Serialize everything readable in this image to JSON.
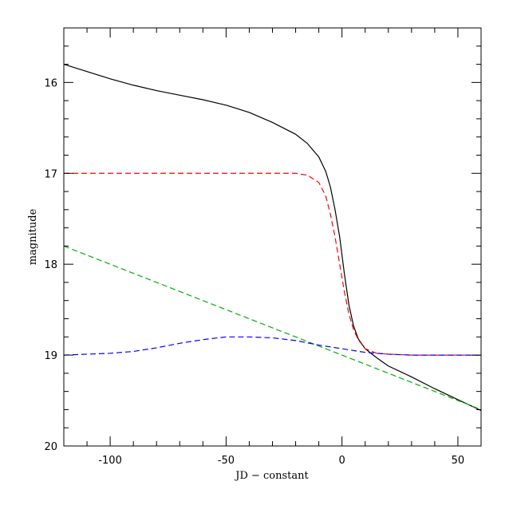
{
  "chart_data": {
    "type": "line",
    "title": "",
    "xlabel": "JD − constant",
    "ylabel": "magnitude",
    "xlim": [
      -120,
      60
    ],
    "ylim": [
      20,
      15.4
    ],
    "y_inverted": true,
    "grid": false,
    "x_ticks": [
      -100,
      -50,
      0,
      50
    ],
    "x_tick_labels": [
      "-100",
      "-50",
      "0",
      "50"
    ],
    "y_ticks": [
      16,
      17,
      18,
      19,
      20
    ],
    "y_tick_labels": [
      "16",
      "17",
      "18",
      "19",
      "20"
    ],
    "series": [
      {
        "color": "#000000",
        "dash": "solid",
        "x": [
          -120,
          -110,
          -100,
          -90,
          -80,
          -70,
          -60,
          -50,
          -40,
          -30,
          -20,
          -15,
          -10,
          -7,
          -5,
          -3,
          -1,
          0,
          1,
          3,
          5,
          7,
          10,
          15,
          20,
          30,
          40,
          50,
          60
        ],
        "y": [
          15.8,
          15.88,
          15.96,
          16.03,
          16.09,
          16.14,
          16.19,
          16.25,
          16.33,
          16.44,
          16.57,
          16.67,
          16.82,
          16.98,
          17.15,
          17.4,
          17.7,
          17.9,
          18.1,
          18.45,
          18.68,
          18.82,
          18.93,
          19.03,
          19.12,
          19.24,
          19.37,
          19.49,
          19.61
        ]
      },
      {
        "color": "#ff0000",
        "dash": "dashed",
        "x": [
          -120,
          -100,
          -80,
          -60,
          -40,
          -20,
          -15,
          -10,
          -7,
          -5,
          -3,
          -1,
          0,
          1,
          3,
          5,
          7,
          10,
          15,
          20,
          30,
          40,
          50,
          60
        ],
        "y": [
          17.0,
          17.0,
          17.0,
          17.0,
          17.0,
          17.0,
          17.02,
          17.1,
          17.25,
          17.45,
          17.7,
          18.0,
          18.15,
          18.3,
          18.55,
          18.72,
          18.83,
          18.93,
          18.98,
          18.99,
          19.0,
          19.0,
          19.0,
          19.0
        ]
      },
      {
        "color": "#00b000",
        "dash": "dashed",
        "x": [
          -120,
          60
        ],
        "y": [
          17.8,
          19.6
        ]
      },
      {
        "color": "#0000ff",
        "dash": "dashed",
        "x": [
          -120,
          -110,
          -100,
          -90,
          -80,
          -70,
          -60,
          -50,
          -40,
          -30,
          -20,
          -10,
          0,
          10,
          20,
          30,
          40,
          50,
          60
        ],
        "y": [
          19.0,
          18.99,
          18.98,
          18.96,
          18.92,
          18.87,
          18.83,
          18.8,
          18.8,
          18.81,
          18.84,
          18.89,
          18.93,
          18.97,
          18.99,
          19.0,
          19.0,
          19.0,
          19.0
        ]
      }
    ]
  }
}
